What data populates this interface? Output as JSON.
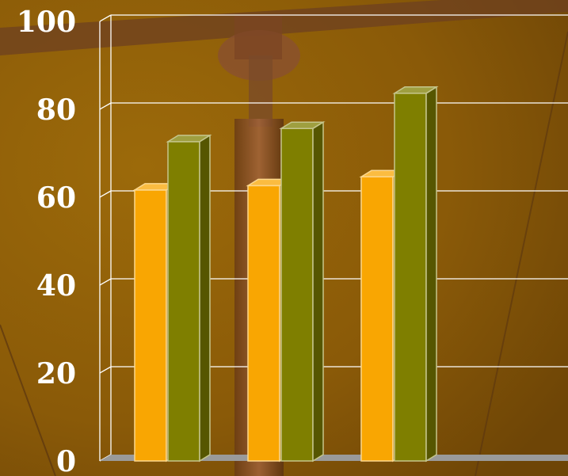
{
  "chart_data": {
    "type": "bar",
    "categories": [
      "",
      "",
      ""
    ],
    "series": [
      {
        "values": [
          62,
          63,
          65
        ],
        "color": "#f9a602"
      },
      {
        "values": [
          73,
          76,
          84
        ],
        "color": "#7f7f00"
      }
    ],
    "ylim": [
      0,
      100
    ],
    "yticks": [
      "0",
      "20",
      "40",
      "60",
      "80",
      "100"
    ],
    "grid": true,
    "three_d": true
  },
  "colors": {
    "background": "#8a5a08",
    "gridline": "#ffffff",
    "floor": "#9a9a9a"
  }
}
